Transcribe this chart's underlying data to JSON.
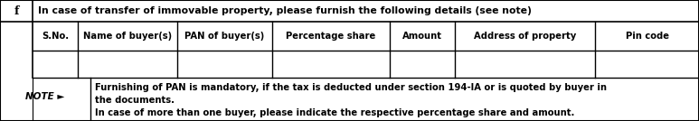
{
  "title_row": "In case of transfer of immovable property, please furnish the following details (see note)",
  "row_label": "f",
  "headers": [
    "S.No.",
    "Name of buyer(s)",
    "PAN of buyer(s)",
    "Percentage share",
    "Amount",
    "Address of property",
    "Pin code"
  ],
  "note_label": "NOTE ►",
  "note_line1": "Furnishing of PAN is mandatory, if the tax is deducted under section 194-IA or is quoted by buyer in",
  "note_line2": "the documents.",
  "note_line3": "In case of more than one buyer, please indicate the respective percentage share and amount.",
  "bg_color": "#ffffff",
  "border_color": "#000000",
  "figwidth": 7.73,
  "figheight": 1.34,
  "dpi": 100
}
